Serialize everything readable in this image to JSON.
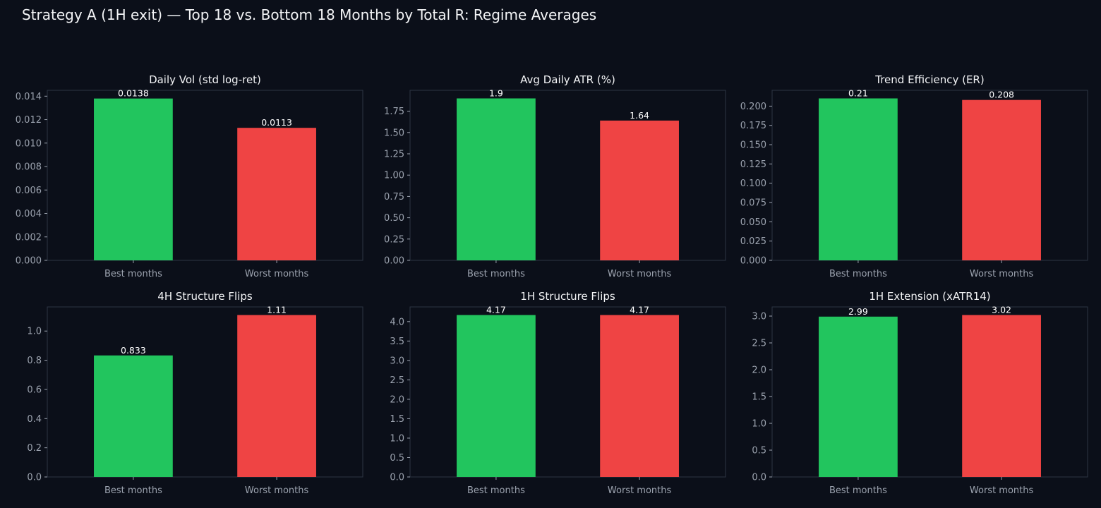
{
  "figure": {
    "title": "Strategy A (1H exit) — Top 18 vs. Bottom 18 Months by Total R: Regime Averages"
  },
  "colors": {
    "background": "#0b0f19",
    "best": "#22c55e",
    "worst": "#ef4444",
    "axis": "#2d3444",
    "text": "#f3f4f6",
    "tick_text": "#9ca3af"
  },
  "chart_data": [
    {
      "type": "bar",
      "title": "Daily Vol (std log-ret)",
      "categories": [
        "Best months",
        "Worst months"
      ],
      "values": [
        0.0138,
        0.0113
      ],
      "value_labels": [
        "0.0138",
        "0.0113"
      ],
      "ylim": [
        0,
        0.0145
      ],
      "yticks": [
        "0.000",
        "0.002",
        "0.004",
        "0.006",
        "0.008",
        "0.010",
        "0.012",
        "0.014"
      ],
      "ytick_values": [
        0,
        0.002,
        0.004,
        0.006,
        0.008,
        0.01,
        0.012,
        0.014
      ],
      "grid": false
    },
    {
      "type": "bar",
      "title": "Avg Daily ATR (%)",
      "categories": [
        "Best months",
        "Worst months"
      ],
      "values": [
        1.9,
        1.64
      ],
      "value_labels": [
        "1.9",
        "1.64"
      ],
      "ylim": [
        0,
        1.995
      ],
      "yticks": [
        "0.00",
        "0.25",
        "0.50",
        "0.75",
        "1.00",
        "1.25",
        "1.50",
        "1.75"
      ],
      "ytick_values": [
        0,
        0.25,
        0.5,
        0.75,
        1.0,
        1.25,
        1.5,
        1.75
      ],
      "grid": false
    },
    {
      "type": "bar",
      "title": "Trend Efficiency (ER)",
      "categories": [
        "Best months",
        "Worst months"
      ],
      "values": [
        0.21,
        0.208
      ],
      "value_labels": [
        "0.21",
        "0.208"
      ],
      "ylim": [
        0,
        0.2205
      ],
      "yticks": [
        "0.000",
        "0.025",
        "0.050",
        "0.075",
        "0.100",
        "0.125",
        "0.150",
        "0.175",
        "0.200"
      ],
      "ytick_values": [
        0,
        0.025,
        0.05,
        0.075,
        0.1,
        0.125,
        0.15,
        0.175,
        0.2
      ],
      "grid": false
    },
    {
      "type": "bar",
      "title": "4H Structure Flips",
      "categories": [
        "Best months",
        "Worst months"
      ],
      "values": [
        0.833,
        1.11
      ],
      "value_labels": [
        "0.833",
        "1.11"
      ],
      "ylim": [
        0,
        1.1655
      ],
      "yticks": [
        "0.0",
        "0.2",
        "0.4",
        "0.6",
        "0.8",
        "1.0"
      ],
      "ytick_values": [
        0,
        0.2,
        0.4,
        0.6,
        0.8,
        1.0
      ],
      "grid": false
    },
    {
      "type": "bar",
      "title": "1H Structure Flips",
      "categories": [
        "Best months",
        "Worst months"
      ],
      "values": [
        4.17,
        4.17
      ],
      "value_labels": [
        "4.17",
        "4.17"
      ],
      "ylim": [
        0,
        4.3785
      ],
      "yticks": [
        "0.0",
        "0.5",
        "1.0",
        "1.5",
        "2.0",
        "2.5",
        "3.0",
        "3.5",
        "4.0"
      ],
      "ytick_values": [
        0,
        0.5,
        1.0,
        1.5,
        2.0,
        2.5,
        3.0,
        3.5,
        4.0
      ],
      "grid": false
    },
    {
      "type": "bar",
      "title": "1H Extension (xATR14)",
      "categories": [
        "Best months",
        "Worst months"
      ],
      "values": [
        2.99,
        3.02
      ],
      "value_labels": [
        "2.99",
        "3.02"
      ],
      "ylim": [
        0,
        3.171
      ],
      "yticks": [
        "0.0",
        "0.5",
        "1.0",
        "1.5",
        "2.0",
        "2.5",
        "3.0"
      ],
      "ytick_values": [
        0,
        0.5,
        1.0,
        1.5,
        2.0,
        2.5,
        3.0
      ],
      "grid": false
    }
  ]
}
